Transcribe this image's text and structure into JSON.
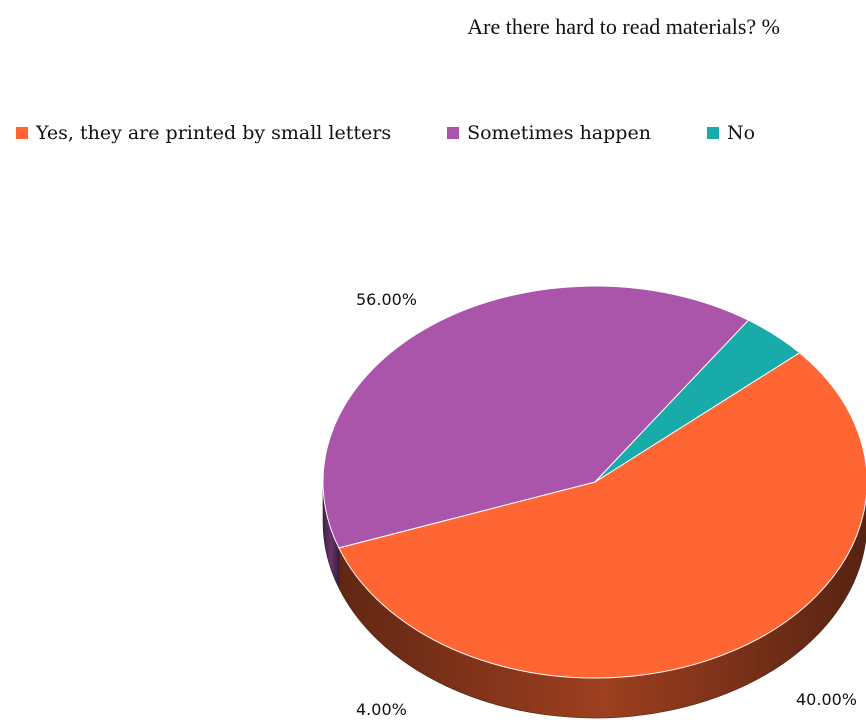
{
  "chart_data": {
    "type": "pie",
    "title": "Are there hard to read materials? %",
    "categories": [
      "Yes, they are printed by small letters",
      "Sometimes happen",
      "No"
    ],
    "values": [
      56.0,
      40.0,
      4.0
    ],
    "labels": [
      "56.00%",
      "40.00%",
      "4.00%"
    ],
    "colors": [
      "#FF6633",
      "#AA55AA",
      "#19AAAA"
    ],
    "legend_position": "top"
  }
}
